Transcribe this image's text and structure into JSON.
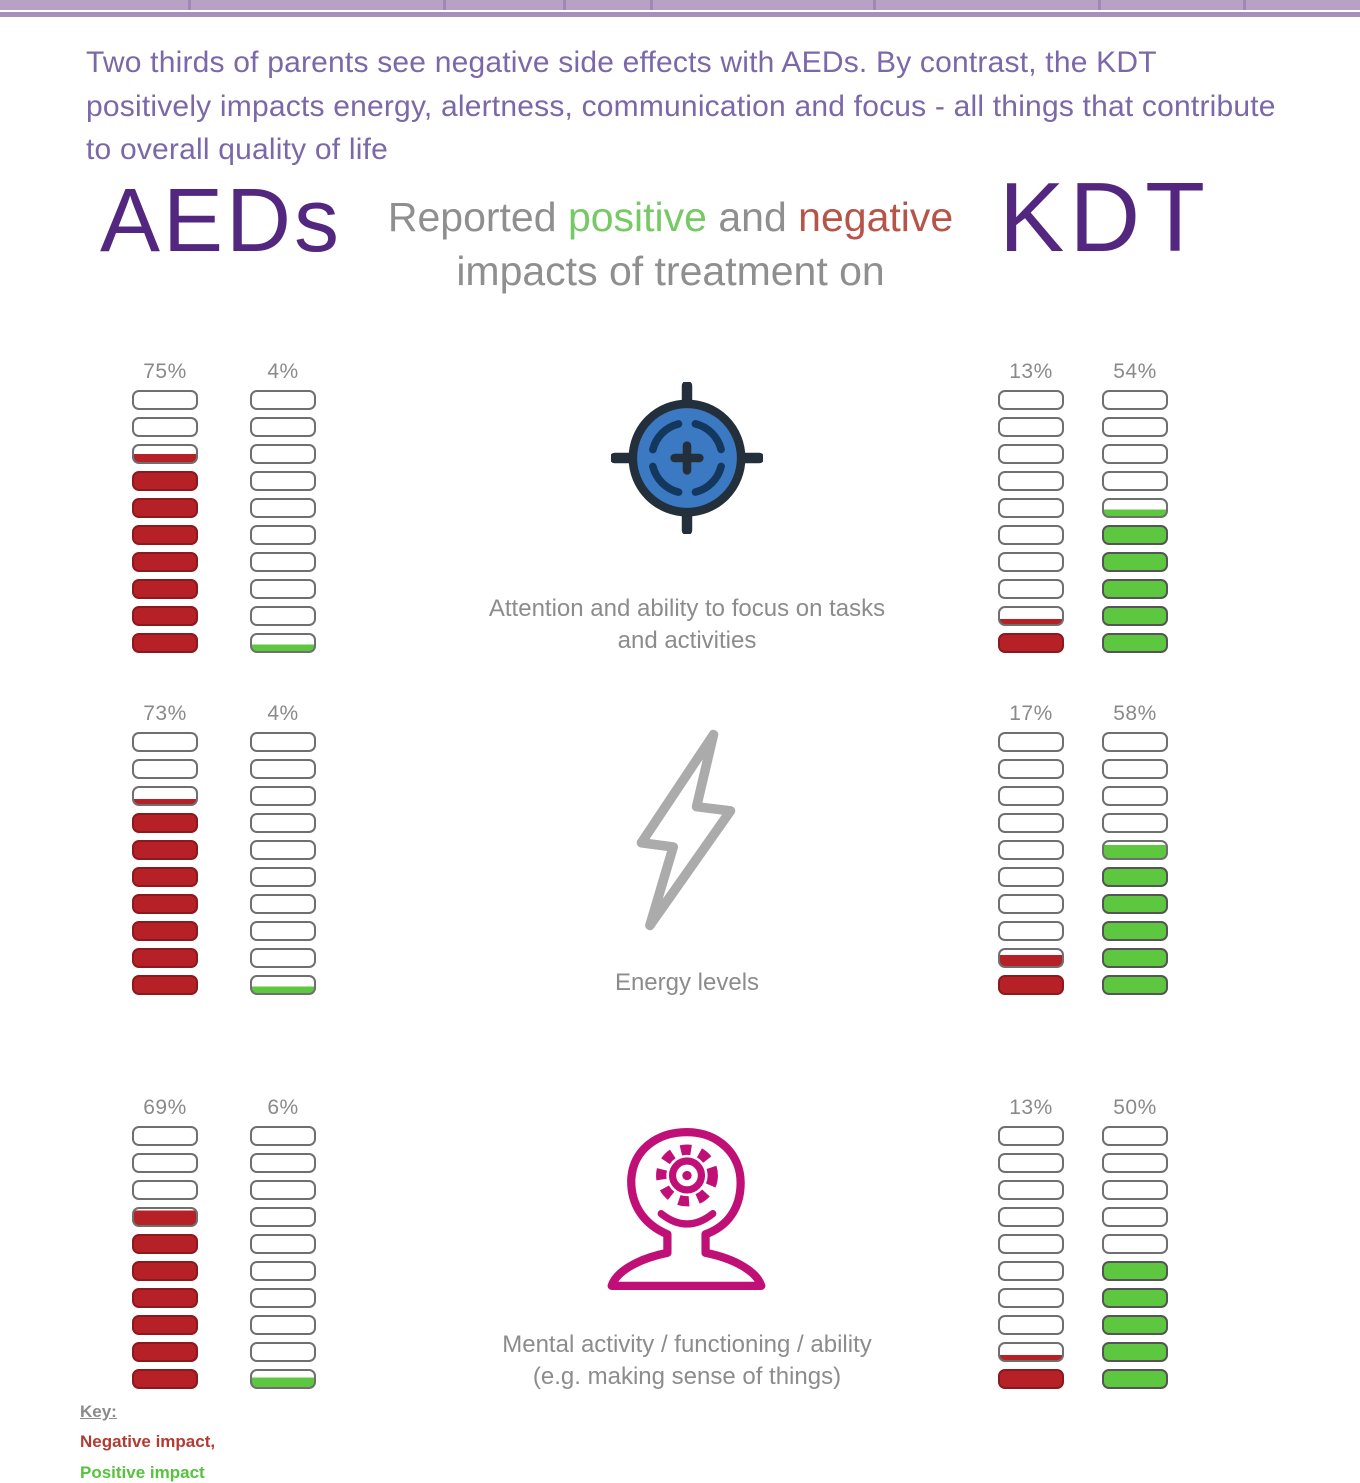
{
  "header": {
    "intro": "Two thirds of parents see negative side effects with AEDs. By contrast, the KDT positively impacts energy, alertness, communication and focus - all things that contribute to overall quality of life",
    "left_title": "AEDs",
    "right_title": "KDT",
    "subtitle": {
      "prefix": "Reported ",
      "positive_word": "positive",
      "and_word": " and ",
      "negative_word": "negative",
      "line2": "impacts of treatment on"
    }
  },
  "key": {
    "title": "Key:",
    "negative": "Negative impact,",
    "positive": "Positive impact"
  },
  "colors": {
    "accent_purple": "#53277f",
    "intro_purple": "#7b68a8",
    "positive_word_green": "#76c964",
    "negative_word_red": "#b6544a",
    "top_bar": "#b7a2c6"
  },
  "chart_data": {
    "type": "bar",
    "subtype": "segmented-battery-infographic",
    "title": "Reported positive and negative impacts of treatment on",
    "groups": [
      "AEDs",
      "KDT"
    ],
    "segments_per_battery": 10,
    "unit": "% of parents reporting",
    "series_labels": {
      "negative": "Negative impact",
      "positive": "Positive impact"
    },
    "colors": {
      "negative": "#b52126",
      "positive": "#5dc83f"
    },
    "rows": [
      {
        "category": "Attention and ability to focus on tasks and activities",
        "icon": "target-icon",
        "AEDs": {
          "negative_pct": 75,
          "positive_pct": 4
        },
        "KDT": {
          "negative_pct": 13,
          "positive_pct": 54
        }
      },
      {
        "category": "Energy levels",
        "icon": "lightning-icon",
        "AEDs": {
          "negative_pct": 73,
          "positive_pct": 4
        },
        "KDT": {
          "negative_pct": 17,
          "positive_pct": 58
        }
      },
      {
        "category": "Mental activity / functioning / ability (e.g. making sense of things)",
        "icon": "head-gear-icon",
        "AEDs": {
          "negative_pct": 69,
          "positive_pct": 6
        },
        "KDT": {
          "negative_pct": 13,
          "positive_pct": 50
        }
      }
    ]
  }
}
